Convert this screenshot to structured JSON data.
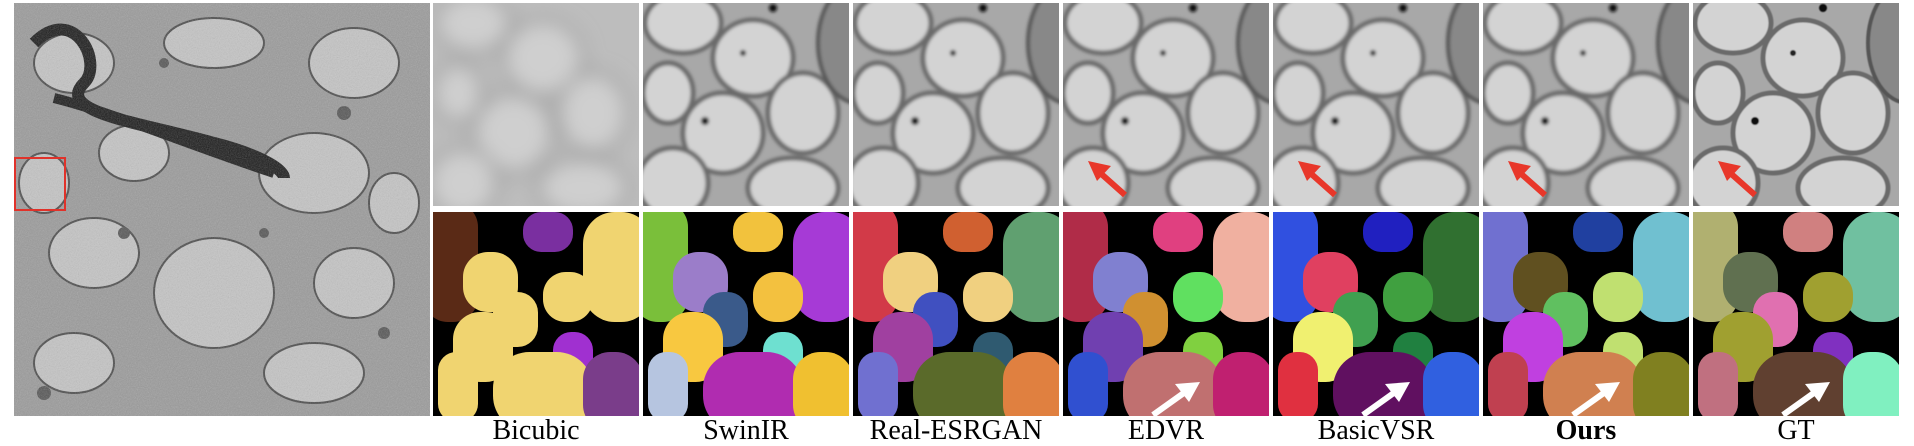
{
  "figure": {
    "columns": [
      {
        "label": "Bicubic",
        "bold": false,
        "red_arrow": false,
        "white_arrow": false
      },
      {
        "label": "SwinIR",
        "bold": false,
        "red_arrow": false,
        "white_arrow": false
      },
      {
        "label": "Real-ESRGAN",
        "bold": false,
        "red_arrow": false,
        "white_arrow": false
      },
      {
        "label": "EDVR",
        "bold": false,
        "red_arrow": true,
        "white_arrow": true
      },
      {
        "label": "BasicVSR",
        "bold": false,
        "red_arrow": true,
        "white_arrow": true
      },
      {
        "label": "Ours",
        "bold": true,
        "red_arrow": true,
        "white_arrow": true
      },
      {
        "label": "GT",
        "bold": false,
        "red_arrow": true,
        "white_arrow": true
      }
    ],
    "colors": {
      "highlight_box": "#e0322a",
      "red_arrow": "#e8372a",
      "white_arrow": "#ffffff",
      "background": "#ffffff"
    }
  }
}
